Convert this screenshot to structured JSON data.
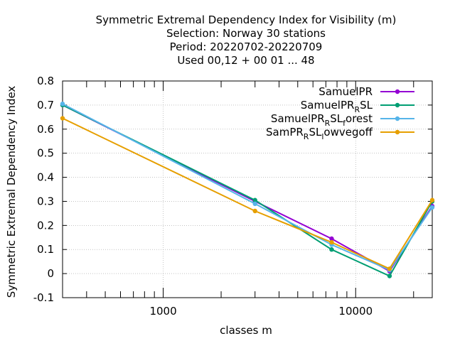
{
  "chart_data": {
    "type": "line",
    "title_lines": [
      "Symmetric Extremal Dependency Index  for Visibility (m)",
      "Selection: Norway     30 stations",
      "Period: 20220702-20220709",
      "Used  00,12  + 00 01 ... 48"
    ],
    "xlabel": "classes m",
    "ylabel": "Symmetric Extremal Dependency Index",
    "x_scale": "log",
    "xlim": [
      300,
      25000
    ],
    "ylim": [
      -0.1,
      0.8
    ],
    "x_ticks": [
      {
        "value": 1000,
        "label": "1000"
      },
      {
        "value": 10000,
        "label": "10000"
      }
    ],
    "y_ticks": [
      {
        "value": -0.1,
        "label": "-0.1"
      },
      {
        "value": 0,
        "label": "0"
      },
      {
        "value": 0.1,
        "label": "0.1"
      },
      {
        "value": 0.2,
        "label": "0.2"
      },
      {
        "value": 0.3,
        "label": "0.3"
      },
      {
        "value": 0.4,
        "label": "0.4"
      },
      {
        "value": 0.5,
        "label": "0.5"
      },
      {
        "value": 0.6,
        "label": "0.6"
      },
      {
        "value": 0.7,
        "label": "0.7"
      },
      {
        "value": 0.8,
        "label": "0.8"
      }
    ],
    "grid": true,
    "legend_position": "top-right",
    "x": [
      300,
      3000,
      7500,
      15000,
      25000
    ],
    "series": [
      {
        "name": "SamuelPR",
        "name_base": "SamuelPR",
        "name_sub": "",
        "name_tail": "",
        "color": "#9400d3",
        "values": [
          0.7,
          0.3,
          0.145,
          0.01,
          0.28
        ]
      },
      {
        "name": "SamuelPR_R SL",
        "name_base": "SamuelPR",
        "name_sub": "R",
        "name_tail": "SL",
        "color": "#009e73",
        "values": [
          0.7,
          0.305,
          0.1,
          -0.01,
          0.3
        ]
      },
      {
        "name": "SamuelPR_R SL_forest",
        "name_base": "SamuelPR",
        "name_sub": "R",
        "name_tail": "SL",
        "name_sub2": "f",
        "name_tail2": "orest",
        "color": "#56b4e9",
        "values": [
          0.705,
          0.29,
          0.12,
          0.015,
          0.275
        ]
      },
      {
        "name": "SamPR_R SL_lowvegoff",
        "name_base": "SamPR",
        "name_sub": "R",
        "name_tail": "SL",
        "name_sub2": "l",
        "name_tail2": "owvegoff",
        "color": "#e69f00",
        "values": [
          0.645,
          0.26,
          0.13,
          0.02,
          0.305
        ]
      }
    ]
  }
}
